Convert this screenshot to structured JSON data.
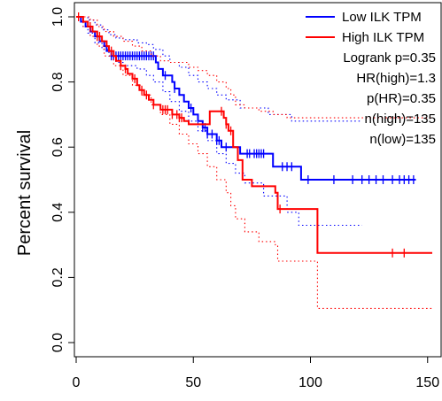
{
  "chart_data": {
    "type": "line",
    "subtype": "kaplan-meier survival curves with 95% confidence bands",
    "title": "",
    "xlabel": "",
    "ylabel": "Percent survival",
    "xlim": [
      0,
      152
    ],
    "ylim": [
      0,
      1.0
    ],
    "xticks": [
      0,
      50,
      100,
      150
    ],
    "yticks": [
      0.0,
      0.2,
      0.4,
      0.6,
      0.8,
      1.0
    ],
    "xtick_labels": [
      "0",
      "50",
      "100",
      "150"
    ],
    "ytick_labels": [
      "0.0",
      "0.2",
      "0.4",
      "0.6",
      "0.8",
      "1.0"
    ],
    "grid": false,
    "legend_position": "top-right",
    "series": [
      {
        "name": "Low ILK TPM",
        "color": "#0000ff",
        "survival": [
          [
            0,
            1.0
          ],
          [
            1,
            1.0
          ],
          [
            2,
            0.985
          ],
          [
            4,
            0.97
          ],
          [
            6,
            0.955
          ],
          [
            8,
            0.94
          ],
          [
            10,
            0.925
          ],
          [
            12,
            0.91
          ],
          [
            13,
            0.895
          ],
          [
            15,
            0.88
          ],
          [
            34,
            0.86
          ],
          [
            35,
            0.84
          ],
          [
            37,
            0.82
          ],
          [
            41,
            0.8
          ],
          [
            42,
            0.78
          ],
          [
            44,
            0.76
          ],
          [
            46,
            0.74
          ],
          [
            48,
            0.72
          ],
          [
            50,
            0.7
          ],
          [
            52,
            0.68
          ],
          [
            54,
            0.66
          ],
          [
            56,
            0.64
          ],
          [
            60,
            0.62
          ],
          [
            62,
            0.6
          ],
          [
            70,
            0.58
          ],
          [
            84,
            0.54
          ],
          [
            96,
            0.5
          ],
          [
            145,
            0.5
          ]
        ],
        "ci_upper": [
          [
            0,
            1.0
          ],
          [
            3,
            1.0
          ],
          [
            5,
            0.99
          ],
          [
            8,
            0.975
          ],
          [
            11,
            0.96
          ],
          [
            14,
            0.945
          ],
          [
            17,
            0.935
          ],
          [
            20,
            0.93
          ],
          [
            26,
            0.92
          ],
          [
            30,
            0.915
          ],
          [
            33,
            0.9
          ],
          [
            37,
            0.88
          ],
          [
            40,
            0.86
          ],
          [
            44,
            0.845
          ],
          [
            48,
            0.82
          ],
          [
            52,
            0.8
          ],
          [
            56,
            0.78
          ],
          [
            60,
            0.76
          ],
          [
            64,
            0.745
          ],
          [
            70,
            0.72
          ],
          [
            82,
            0.7
          ],
          [
            92,
            0.68
          ],
          [
            122,
            0.68
          ]
        ],
        "ci_lower": [
          [
            0,
            1.0
          ],
          [
            3,
            0.97
          ],
          [
            5,
            0.95
          ],
          [
            8,
            0.92
          ],
          [
            11,
            0.9
          ],
          [
            14,
            0.88
          ],
          [
            17,
            0.86
          ],
          [
            20,
            0.85
          ],
          [
            26,
            0.84
          ],
          [
            30,
            0.82
          ],
          [
            33,
            0.8
          ],
          [
            37,
            0.77
          ],
          [
            40,
            0.74
          ],
          [
            44,
            0.71
          ],
          [
            48,
            0.68
          ],
          [
            52,
            0.65
          ],
          [
            56,
            0.62
          ],
          [
            60,
            0.58
          ],
          [
            64,
            0.55
          ],
          [
            68,
            0.52
          ],
          [
            72,
            0.49
          ],
          [
            80,
            0.45
          ],
          [
            90,
            0.4
          ],
          [
            95,
            0.36
          ],
          [
            122,
            0.36
          ]
        ],
        "censor_times": [
          15,
          16,
          17,
          18,
          19,
          20,
          21,
          22,
          23,
          24,
          25,
          26,
          27,
          28,
          29,
          30,
          31,
          32,
          33,
          38,
          42,
          49,
          54,
          55,
          56,
          58,
          60,
          61,
          64,
          73,
          74,
          76,
          77,
          78,
          79,
          80,
          88,
          90,
          92,
          99,
          110,
          118,
          122,
          125,
          128,
          131,
          135,
          138,
          140,
          142,
          144
        ]
      },
      {
        "name": "High ILK TPM",
        "color": "#ff0000",
        "survival": [
          [
            0,
            1.0
          ],
          [
            2,
            1.0
          ],
          [
            3,
            0.985
          ],
          [
            5,
            0.97
          ],
          [
            7,
            0.955
          ],
          [
            9,
            0.94
          ],
          [
            11,
            0.925
          ],
          [
            13,
            0.91
          ],
          [
            14,
            0.895
          ],
          [
            16,
            0.88
          ],
          [
            17,
            0.865
          ],
          [
            19,
            0.85
          ],
          [
            21,
            0.84
          ],
          [
            22,
            0.825
          ],
          [
            24,
            0.81
          ],
          [
            26,
            0.79
          ],
          [
            27,
            0.775
          ],
          [
            29,
            0.76
          ],
          [
            31,
            0.745
          ],
          [
            33,
            0.73
          ],
          [
            36,
            0.715
          ],
          [
            41,
            0.7
          ],
          [
            44,
            0.69
          ],
          [
            46,
            0.68
          ],
          [
            48,
            0.67
          ],
          [
            57,
            0.71
          ],
          [
            63,
            0.69
          ],
          [
            64,
            0.67
          ],
          [
            65,
            0.65
          ],
          [
            67,
            0.6
          ],
          [
            69,
            0.56
          ],
          [
            71,
            0.5
          ],
          [
            75,
            0.48
          ],
          [
            85,
            0.46
          ],
          [
            86,
            0.41
          ],
          [
            102,
            0.41
          ],
          [
            103,
            0.275
          ],
          [
            152,
            0.275
          ]
        ],
        "ci_upper": [
          [
            0,
            1.0
          ],
          [
            3,
            1.0
          ],
          [
            6,
            0.99
          ],
          [
            9,
            0.97
          ],
          [
            12,
            0.955
          ],
          [
            16,
            0.94
          ],
          [
            20,
            0.925
          ],
          [
            24,
            0.91
          ],
          [
            28,
            0.895
          ],
          [
            32,
            0.88
          ],
          [
            36,
            0.865
          ],
          [
            40,
            0.86
          ],
          [
            44,
            0.86
          ],
          [
            48,
            0.845
          ],
          [
            52,
            0.835
          ],
          [
            56,
            0.82
          ],
          [
            60,
            0.8
          ],
          [
            64,
            0.78
          ],
          [
            66,
            0.76
          ],
          [
            68,
            0.73
          ],
          [
            72,
            0.72
          ],
          [
            78,
            0.71
          ],
          [
            84,
            0.7
          ],
          [
            90,
            0.69
          ],
          [
            104,
            0.69
          ],
          [
            152,
            0.69
          ]
        ],
        "ci_lower": [
          [
            0,
            1.0
          ],
          [
            3,
            0.97
          ],
          [
            6,
            0.94
          ],
          [
            9,
            0.91
          ],
          [
            12,
            0.88
          ],
          [
            16,
            0.85
          ],
          [
            20,
            0.82
          ],
          [
            24,
            0.79
          ],
          [
            28,
            0.76
          ],
          [
            32,
            0.73
          ],
          [
            36,
            0.7
          ],
          [
            40,
            0.67
          ],
          [
            44,
            0.64
          ],
          [
            48,
            0.61
          ],
          [
            52,
            0.58
          ],
          [
            56,
            0.54
          ],
          [
            60,
            0.5
          ],
          [
            64,
            0.46
          ],
          [
            66,
            0.42
          ],
          [
            68,
            0.38
          ],
          [
            72,
            0.34
          ],
          [
            78,
            0.31
          ],
          [
            85,
            0.3
          ],
          [
            86,
            0.25
          ],
          [
            102,
            0.25
          ],
          [
            103,
            0.105
          ],
          [
            152,
            0.105
          ]
        ],
        "censor_times": [
          1,
          6,
          9,
          10,
          15,
          19,
          21,
          25,
          28,
          30,
          33,
          37,
          38,
          39,
          41,
          43,
          44,
          45,
          62,
          64,
          66,
          87,
          135,
          140
        ]
      }
    ],
    "annotations": [
      "Logrank p=0.35",
      "HR(high)=1.3",
      "p(HR)=0.35",
      "n(high)=135",
      "n(low)=135"
    ]
  }
}
